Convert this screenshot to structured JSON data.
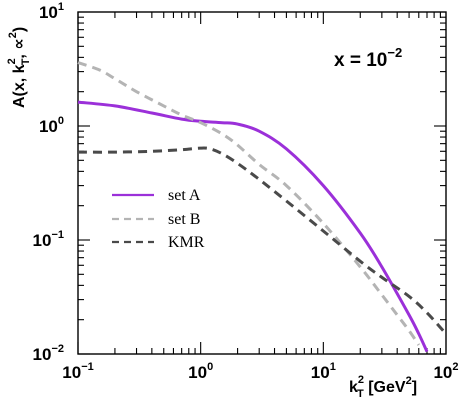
{
  "chart_data": {
    "type": "line",
    "xscale": "log",
    "yscale": "log",
    "xlim": [
      0.1,
      100
    ],
    "ylim": [
      0.01,
      10
    ],
    "grid": false,
    "legend_position": "center-left",
    "xlabel": {
      "base": "k",
      "sup": "2",
      "sub": "T",
      "unit_pre": " [GeV",
      "unit_sup": "2",
      "unit_post": "]"
    },
    "ylabel": {
      "pre": "A(x, k",
      "sup": "2",
      "sub": "T",
      "post": ", ∝",
      "post_sup": "2",
      "end": ")"
    },
    "annotation": {
      "base": "x = 10",
      "sup": "−2"
    },
    "xticks": [
      {
        "base": "10",
        "exp": "−1",
        "value": 0.1
      },
      {
        "base": "10",
        "exp": "0",
        "value": 1
      },
      {
        "base": "10",
        "exp": "1",
        "value": 10
      },
      {
        "base": "10",
        "exp": "2",
        "value": 100
      }
    ],
    "yticks": [
      {
        "base": "10",
        "exp": "−2",
        "value": 0.01
      },
      {
        "base": "10",
        "exp": "−1",
        "value": 0.1
      },
      {
        "base": "10",
        "exp": "0",
        "value": 1
      },
      {
        "base": "10",
        "exp": "1",
        "value": 10
      }
    ],
    "series": [
      {
        "name": "set A",
        "color": "#9b30d9",
        "style": "solid",
        "x": [
          0.1,
          0.2,
          0.4,
          0.7,
          1.0,
          1.5,
          2.0,
          3.0,
          5.0,
          10,
          20,
          30,
          50,
          60,
          70,
          75
        ],
        "y": [
          1.62,
          1.5,
          1.3,
          1.15,
          1.1,
          1.07,
          1.04,
          0.9,
          0.63,
          0.3,
          0.115,
          0.058,
          0.022,
          0.015,
          0.0105,
          0.009
        ]
      },
      {
        "name": "set B",
        "color": "#b4b4b4",
        "style": "dash",
        "x": [
          0.1,
          0.15,
          0.2,
          0.3,
          0.5,
          0.7,
          1.0,
          1.5,
          2.0,
          3.0,
          5.0,
          10,
          20,
          30,
          40,
          50,
          60,
          70,
          75
        ],
        "y": [
          3.6,
          3.1,
          2.6,
          2.0,
          1.5,
          1.25,
          1.07,
          0.85,
          0.68,
          0.46,
          0.3,
          0.14,
          0.058,
          0.033,
          0.022,
          0.016,
          0.012,
          0.0095,
          0.009
        ]
      },
      {
        "name": "KMR",
        "color": "#4a4a4a",
        "style": "dash",
        "x": [
          0.1,
          0.2,
          0.4,
          0.7,
          1.0,
          1.2,
          1.5,
          2.0,
          3.0,
          5.0,
          10,
          20,
          30,
          50,
          70,
          100
        ],
        "y": [
          0.59,
          0.59,
          0.6,
          0.62,
          0.64,
          0.63,
          0.57,
          0.47,
          0.34,
          0.22,
          0.12,
          0.065,
          0.047,
          0.032,
          0.023,
          0.015
        ]
      }
    ]
  }
}
